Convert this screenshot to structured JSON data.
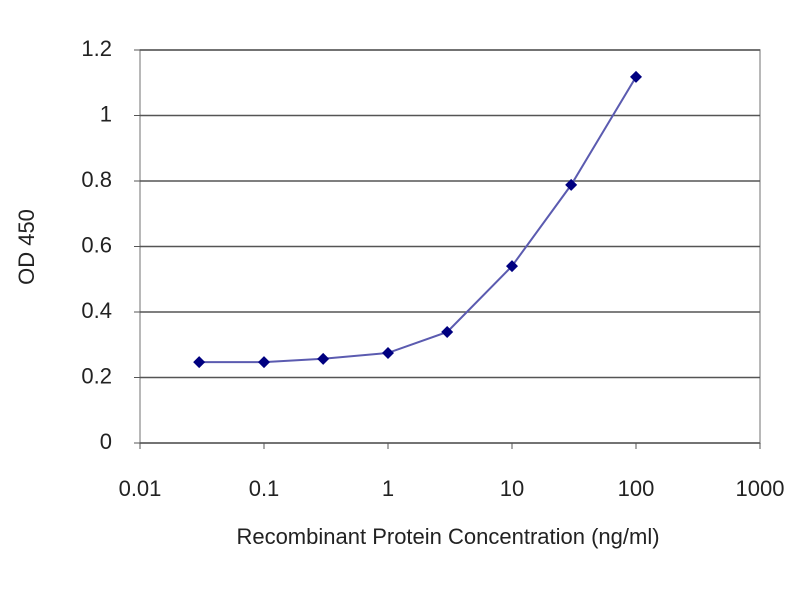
{
  "chart_data": {
    "type": "line",
    "x_label": "Recombinant Protein Concentration (ng/ml)",
    "y_label": "OD 450",
    "x": [
      0.03,
      0.1,
      0.3,
      1,
      3,
      10,
      30,
      100
    ],
    "values": [
      0.247,
      0.247,
      0.257,
      0.275,
      0.339,
      0.54,
      0.788,
      1.118
    ],
    "color": "#000080",
    "line_color": "#5b5bb0",
    "x_log": true,
    "xlim": [
      0.01,
      1000
    ],
    "xticks": [
      0.01,
      0.1,
      1,
      10,
      100,
      1000
    ],
    "ylim": [
      0,
      1.2
    ],
    "yticks": [
      0,
      0.2,
      0.4,
      0.6,
      0.8,
      1,
      1.2
    ],
    "grid": true
  }
}
